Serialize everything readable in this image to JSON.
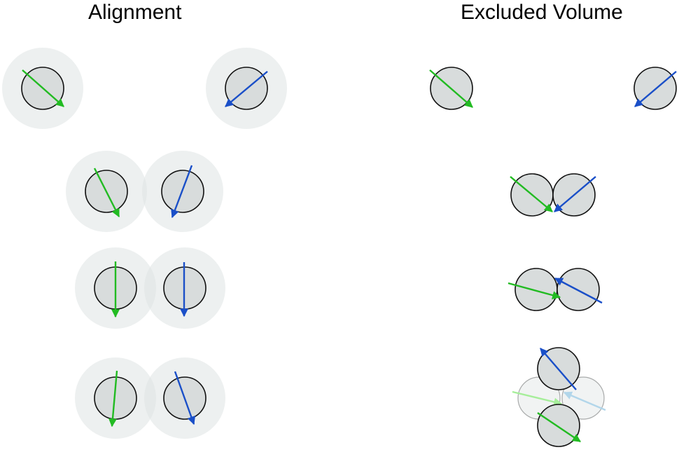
{
  "titles": {
    "left": "Alignment",
    "right": "Excluded Volume"
  },
  "colors": {
    "particle_fill": "#d8dcdc",
    "particle_stroke": "#111111",
    "halo_fill": "#dfe3e3",
    "green_arrow": "#22bb22",
    "blue_arrow": "#1a4fc8",
    "faded_green_arrow": "#a6ee9a",
    "faded_blue_arrow": "#b2d6ea",
    "faded_particle_stroke": "#a8aaaa"
  },
  "legend": []
}
